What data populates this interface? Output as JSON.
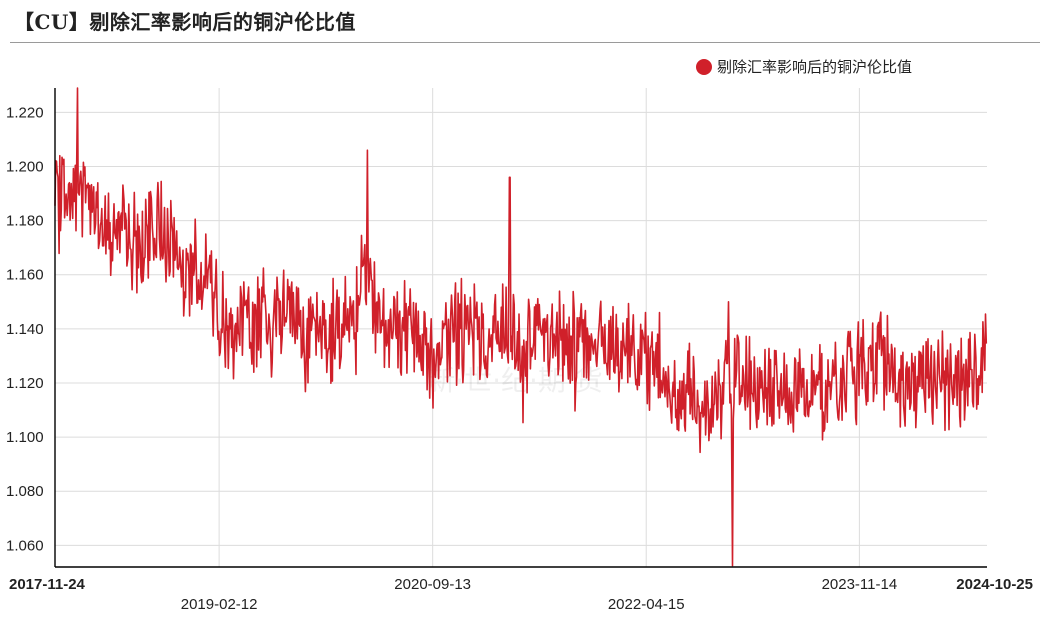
{
  "title": "【CU】剔除汇率影响后的铜沪伦比值",
  "colors": {
    "series": "#d0202a",
    "grid": "#dcdcdc",
    "axis": "#000000"
  },
  "chart_data": {
    "type": "line",
    "series": [
      {
        "name": "剔除汇率影响后的铜沪伦比值",
        "x": [
          "2017-11-24",
          "2018-01-15",
          "2018-03-15",
          "2018-05-15",
          "2018-07-15",
          "2018-09-15",
          "2018-11-15",
          "2019-01-15",
          "2019-02-12",
          "2019-04-15",
          "2019-06-15",
          "2019-08-15",
          "2019-10-15",
          "2019-12-15",
          "2020-02-15",
          "2020-03-20",
          "2020-04-15",
          "2020-06-15",
          "2020-07-25",
          "2020-09-13",
          "2020-11-15",
          "2021-01-15",
          "2021-03-15",
          "2021-05-15",
          "2021-07-15",
          "2021-09-15",
          "2021-11-15",
          "2022-01-15",
          "2022-03-15",
          "2022-04-15",
          "2022-05-15",
          "2022-06-20",
          "2022-08-15",
          "2022-09-20",
          "2022-11-15",
          "2023-01-15",
          "2023-03-15",
          "2023-05-15",
          "2023-07-15",
          "2023-09-15",
          "2023-11-14",
          "2024-01-15",
          "2024-03-15",
          "2024-05-15",
          "2024-07-15",
          "2024-09-15",
          "2024-10-25"
        ],
        "values": [
          1.185,
          1.195,
          1.182,
          1.178,
          1.17,
          1.18,
          1.16,
          1.162,
          1.145,
          1.14,
          1.142,
          1.146,
          1.138,
          1.135,
          1.15,
          1.158,
          1.142,
          1.14,
          1.138,
          1.13,
          1.14,
          1.136,
          1.138,
          1.135,
          1.14,
          1.136,
          1.138,
          1.134,
          1.13,
          1.128,
          1.132,
          1.118,
          1.115,
          1.11,
          1.12,
          1.122,
          1.115,
          1.118,
          1.116,
          1.12,
          1.125,
          1.128,
          1.118,
          1.126,
          1.12,
          1.123,
          1.135
        ],
        "extremes": [
          {
            "x": "2018-01-25",
            "y": 1.229
          },
          {
            "x": "2020-03-20",
            "y": 1.206
          },
          {
            "x": "2021-04-10",
            "y": 1.196
          },
          {
            "x": "2022-12-05",
            "y": 1.051
          }
        ]
      }
    ],
    "x_ticks": [
      "2017-11-24",
      "2019-02-12",
      "2020-09-13",
      "2022-04-15",
      "2023-11-14",
      "2024-10-25"
    ],
    "ylim": [
      1.052,
      1.229
    ],
    "y_ticks": [
      1.06,
      1.08,
      1.1,
      1.12,
      1.14,
      1.16,
      1.18,
      1.2,
      1.22
    ],
    "legend_position": "top-right",
    "grid": true
  },
  "watermark": "新·世·纪·期·货"
}
